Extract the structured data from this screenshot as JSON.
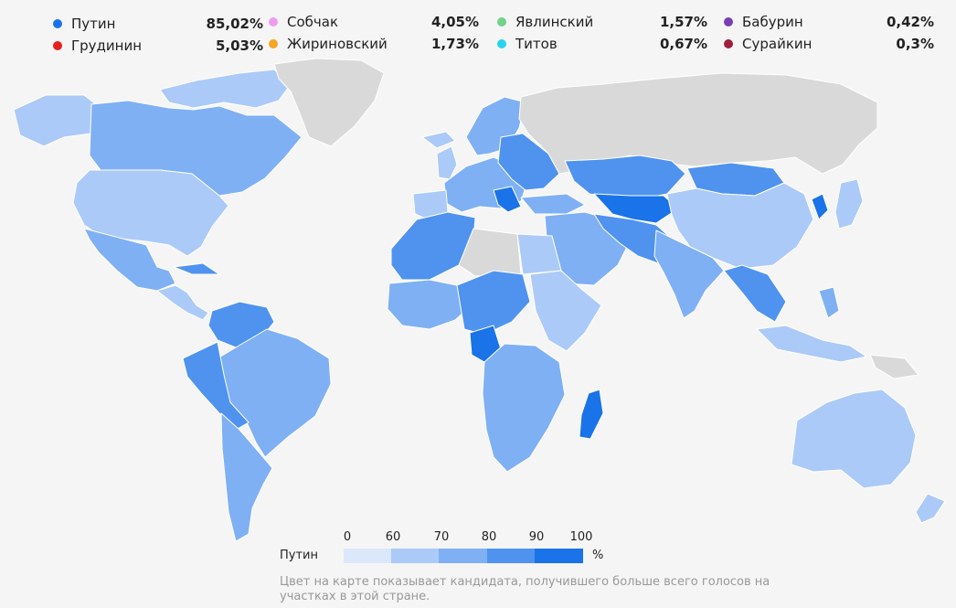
{
  "candidates": [
    {
      "name": "Путин",
      "value": "85,02%",
      "color": "#1a73e8"
    },
    {
      "name": "Грудинин",
      "value": "5,03%",
      "color": "#e81e1e"
    },
    {
      "name": "Собчак",
      "value": "4,05%",
      "color": "#ee9cf0"
    },
    {
      "name": "Жириновский",
      "value": "1,73%",
      "color": "#f5a623"
    },
    {
      "name": "Явлинский",
      "value": "1,57%",
      "color": "#6fd38a"
    },
    {
      "name": "Титов",
      "value": "0,67%",
      "color": "#29d3ec"
    },
    {
      "name": "Бабурин",
      "value": "0,42%",
      "color": "#7a3fb0"
    },
    {
      "name": "Сурайкин",
      "value": "0,3%",
      "color": "#a01f3a"
    }
  ],
  "scale": {
    "label": "Путин",
    "ticks": [
      "0",
      "60",
      "70",
      "80",
      "90",
      "100"
    ],
    "unit": "%",
    "colors": [
      "#dbe7fb",
      "#abcaf7",
      "#7fb0f4",
      "#4f93ef",
      "#1a73e8"
    ]
  },
  "note": "Цвет на карте показывает кандидата, получившего больше всего голосов на участках в этой стране.",
  "map_colors": {
    "no_data": "#d9d9d9",
    "border": "#ffffff"
  }
}
